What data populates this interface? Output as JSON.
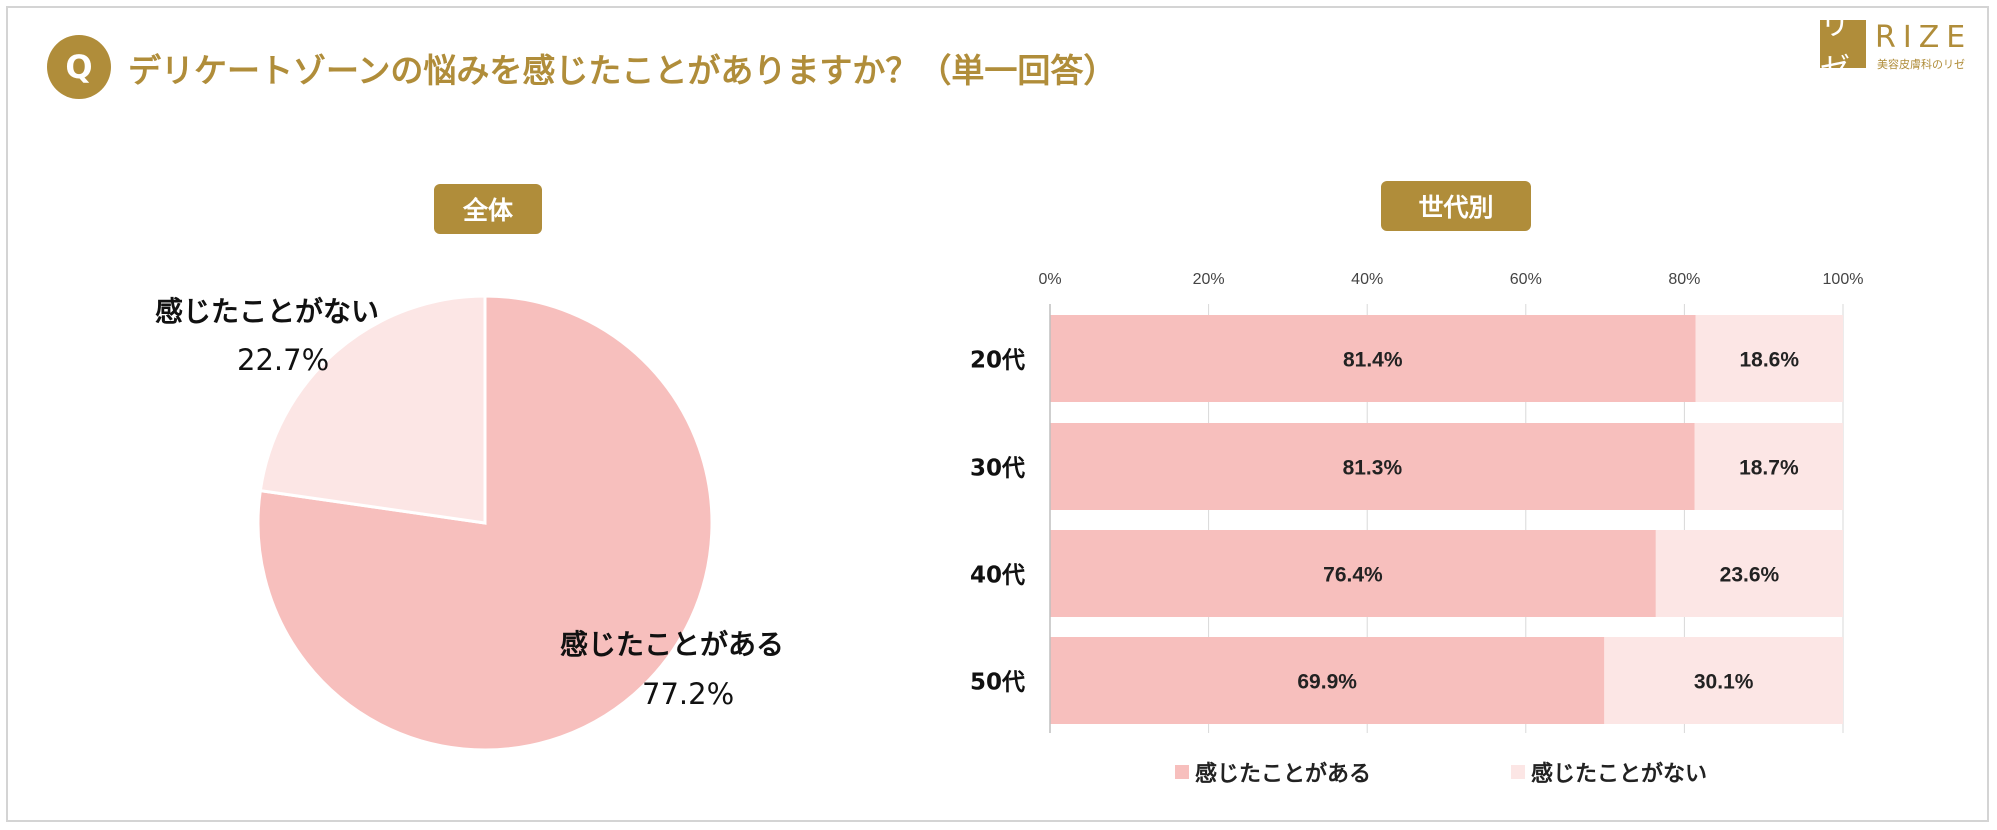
{
  "header": {
    "badge": "Q",
    "question": "デリケートゾーンの悩みを感じたことがありますか？（単一回答）"
  },
  "logo": {
    "mark": "リゼ",
    "name": "RIZE",
    "tagline": "美容皮膚科のリゼ"
  },
  "sections": {
    "overall": "全体",
    "by_age": "世代別"
  },
  "colors": {
    "accent": "#b08d3a",
    "yes": "#f7bfbd",
    "no": "#fce6e5"
  },
  "chart_data": [
    {
      "type": "pie",
      "title": "全体",
      "slices": [
        {
          "label": "感じたことがある",
          "value": 77.2,
          "pct_label": "77.2%"
        },
        {
          "label": "感じたことがない",
          "value": 22.7,
          "pct_label": "22.7%"
        }
      ]
    },
    {
      "type": "bar",
      "orientation": "horizontal",
      "stacked": "percent",
      "title": "世代別",
      "categories": [
        "20代",
        "30代",
        "40代",
        "50代"
      ],
      "series": [
        {
          "name": "感じたことがある",
          "values": [
            81.4,
            81.3,
            76.4,
            69.9
          ],
          "labels": [
            "81.4%",
            "81.3%",
            "76.4%",
            "69.9%"
          ]
        },
        {
          "name": "感じたことがない",
          "values": [
            18.6,
            18.7,
            23.6,
            30.1
          ],
          "labels": [
            "18.6%",
            "18.7%",
            "23.6%",
            "30.1%"
          ]
        }
      ],
      "xlim": [
        0,
        100
      ],
      "xticks": [
        "0%",
        "20%",
        "40%",
        "60%",
        "80%",
        "100%"
      ],
      "grid": true,
      "legend": "bottom"
    }
  ]
}
